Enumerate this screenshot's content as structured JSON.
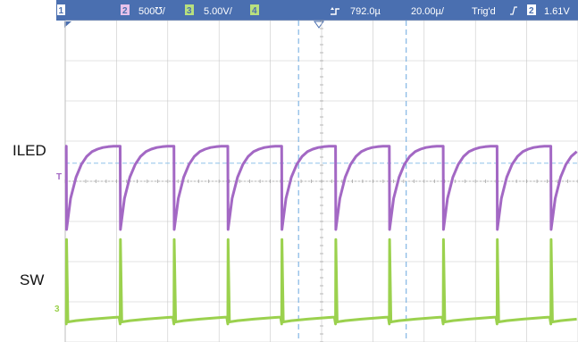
{
  "status_bar": {
    "ch1_number": "1",
    "ch2_number": "2",
    "ch2_scale": "500℧/",
    "ch3_number": "3",
    "ch3_scale": "5.00V/",
    "ch4_number": "4",
    "trigger_position": "792.0µ",
    "timebase": "20.00µ/",
    "trigger_state": "Trig'd",
    "trigger_slope_icon": "rising-edge-icon",
    "trigger_source_number": "2",
    "trigger_level": "1.61V"
  },
  "labels": {
    "iled": "ILED",
    "sw": "SW"
  },
  "colors": {
    "status_bar": "#4a6fb0",
    "iled_trace": "#a368c4",
    "sw_trace": "#9bd14e",
    "grid": "#c8c8c8",
    "cursor": "#6aa8df",
    "trigger_level_line": "#8fc4ea",
    "ch2_box": "#e7c1ea",
    "ch3_box": "#b8e07e"
  },
  "chart_data": {
    "type": "line",
    "title": "",
    "xlabel": "",
    "ylabel": "",
    "x_divisions": 10,
    "y_divisions": 8,
    "x_unit_per_div_us": 20,
    "grid": true,
    "period_us": 21,
    "series": [
      {
        "name": "ILED",
        "channel": 2,
        "color": "#a368c4",
        "offset_div": -0.58,
        "scale_mA_per_div": 500,
        "points_div": [
          [
            0.0,
            1.45
          ],
          [
            0.2,
            1.45
          ],
          [
            0.25,
            -0.62
          ],
          [
            1.0,
            0.15
          ],
          [
            2.0,
            0.68
          ],
          [
            3.0,
            1.0
          ],
          [
            4.0,
            1.2
          ],
          [
            5.0,
            1.32
          ],
          [
            6.0,
            1.38
          ],
          [
            7.0,
            1.42
          ],
          [
            8.0,
            1.44
          ],
          [
            9.0,
            1.45
          ],
          [
            10.0,
            1.45
          ]
        ],
        "note_repeat": "waveform repeats each period"
      },
      {
        "name": "SW",
        "channel": 3,
        "color": "#9bd14e",
        "offset_div": -3.55,
        "scale_V_per_div": 5,
        "points_div": [
          [
            0.0,
            0.0
          ],
          [
            0.2,
            0.0
          ],
          [
            0.25,
            2.1
          ],
          [
            0.5,
            0.05
          ],
          [
            2.0,
            0.08
          ],
          [
            5.0,
            0.12
          ],
          [
            9.0,
            0.16
          ],
          [
            10.0,
            0.17
          ]
        ]
      }
    ],
    "cursors": {
      "vertical_div": [
        4.55,
        6.65
      ],
      "trigger_level_div": 0.45
    }
  }
}
